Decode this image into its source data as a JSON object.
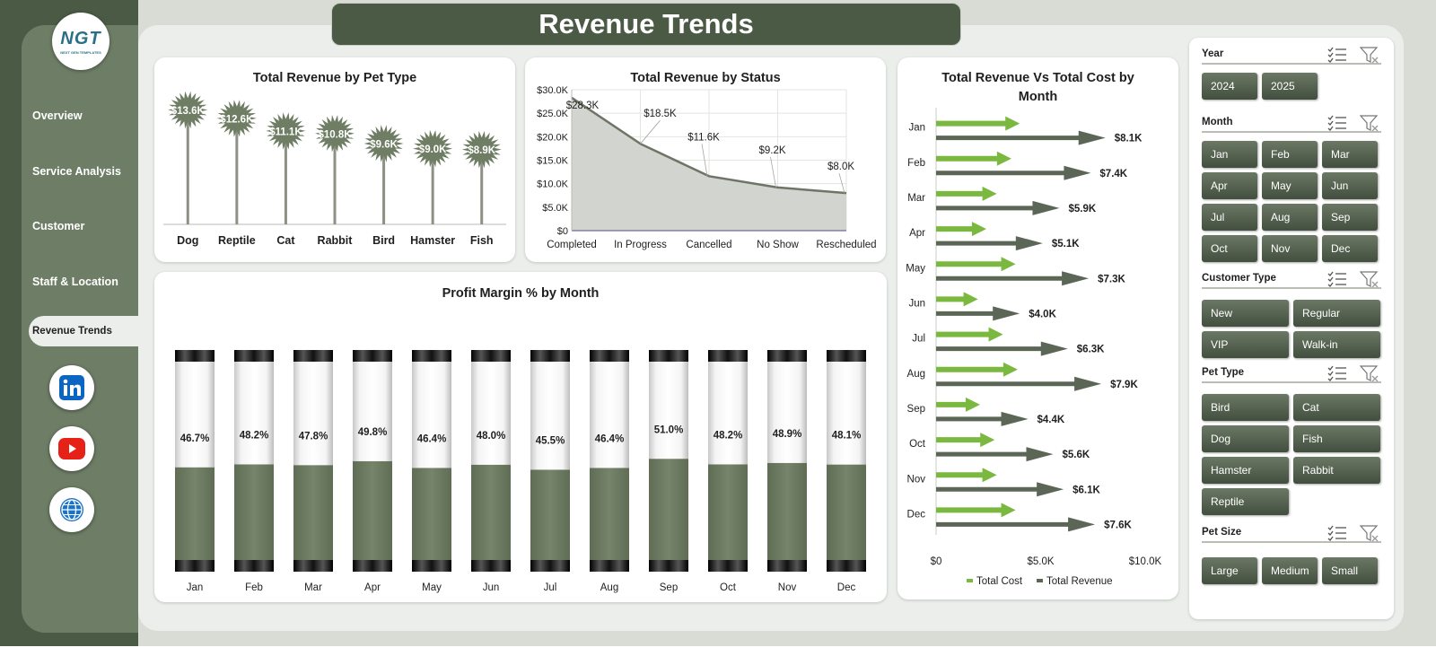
{
  "title": "Revenue Trends",
  "logo": {
    "text": "NGT",
    "sub": "NEXT GEN TEMPLATES"
  },
  "nav": [
    {
      "label": "Overview"
    },
    {
      "label": "Service Analysis"
    },
    {
      "label": "Customer"
    },
    {
      "label": "Staff & Location"
    },
    {
      "label": "Revenue Trends",
      "active": true
    }
  ],
  "social": [
    {
      "icon": "linkedin-icon",
      "color": "#0a66c2"
    },
    {
      "icon": "youtube-icon",
      "color": "#e62117"
    },
    {
      "icon": "globe-icon",
      "color": "#1a73c8"
    }
  ],
  "colors": {
    "dark_green": "#4b5a45",
    "mid_green": "#6e7e66",
    "bar_green": "#6e7d63",
    "bright_green": "#7ab83f"
  },
  "chart_data": [
    {
      "id": "pet",
      "type": "bar",
      "title": "Total Revenue  by Pet Type",
      "categories": [
        "Dog",
        "Reptile",
        "Cat",
        "Rabbit",
        "Bird",
        "Hamster",
        "Fish"
      ],
      "values": [
        13.6,
        12.6,
        11.1,
        10.8,
        9.6,
        9.0,
        8.9
      ],
      "labels": [
        "$13.6K",
        "$12.6K",
        "$11.1K",
        "$10.8K",
        "$9.6K",
        "$9.0K",
        "$8.9K"
      ],
      "ylim": [
        0,
        16
      ]
    },
    {
      "id": "status",
      "type": "area",
      "title": "Total Revenue  by Status",
      "categories": [
        "Completed",
        "In Progress",
        "Cancelled",
        "No Show",
        "Rescheduled"
      ],
      "values": [
        28.3,
        18.5,
        11.6,
        9.2,
        8.0
      ],
      "labels": [
        "$28.3K",
        "$18.5K",
        "$11.6K",
        "$9.2K",
        "$8.0K"
      ],
      "yticks": [
        "$0",
        "$5.0K",
        "$10.0K",
        "$15.0K",
        "$20.0K",
        "$25.0K",
        "$30.0K"
      ],
      "ylim": [
        0,
        30
      ]
    },
    {
      "id": "revcost",
      "type": "bar",
      "title": "Total Revenue Vs Total Cost  by Month",
      "categories": [
        "Jan",
        "Feb",
        "Mar",
        "Apr",
        "May",
        "Jun",
        "Jul",
        "Aug",
        "Sep",
        "Oct",
        "Nov",
        "Dec"
      ],
      "series": [
        {
          "name": "Total Cost",
          "values": [
            4.0,
            3.6,
            2.9,
            2.4,
            3.8,
            2.0,
            3.2,
            3.9,
            2.1,
            2.8,
            2.9,
            3.8
          ]
        },
        {
          "name": "Total Revenue",
          "values": [
            8.1,
            7.4,
            5.9,
            5.1,
            7.3,
            4.0,
            6.3,
            7.9,
            4.4,
            5.6,
            6.1,
            7.6
          ],
          "labels": [
            "$8.1K",
            "$7.4K",
            "$5.9K",
            "$5.1K",
            "$7.3K",
            "$4.0K",
            "$6.3K",
            "$7.9K",
            "$4.4K",
            "$5.6K",
            "$6.1K",
            "$7.6K"
          ]
        }
      ],
      "xticks": [
        "$0",
        "$5.0K",
        "$10.0K"
      ],
      "xlim": [
        0,
        10
      ]
    },
    {
      "id": "margin",
      "type": "bar",
      "title": "Profit Margin % by Month",
      "categories": [
        "Jan",
        "Feb",
        "Mar",
        "Apr",
        "May",
        "Jun",
        "Jul",
        "Aug",
        "Sep",
        "Oct",
        "Nov",
        "Dec"
      ],
      "values": [
        46.7,
        48.2,
        47.8,
        49.8,
        46.4,
        48.0,
        45.5,
        46.4,
        51.0,
        48.2,
        48.9,
        48.1
      ],
      "labels": [
        "46.7%",
        "48.2%",
        "47.8%",
        "49.8%",
        "46.4%",
        "48.0%",
        "45.5%",
        "46.4%",
        "51.0%",
        "48.2%",
        "48.9%",
        "48.1%"
      ],
      "ylim": [
        0,
        100
      ]
    }
  ],
  "slicers": [
    {
      "title": "Year",
      "items": [
        "2024",
        "2025"
      ]
    },
    {
      "title": "Month",
      "items": [
        "Jan",
        "Feb",
        "Mar",
        "Apr",
        "May",
        "Jun",
        "Jul",
        "Aug",
        "Sep",
        "Oct",
        "Nov",
        "Dec"
      ]
    },
    {
      "title": "Customer Type",
      "items": [
        "New",
        "Regular",
        "VIP",
        "Walk-in"
      ]
    },
    {
      "title": "Pet Type",
      "items": [
        "Bird",
        "Cat",
        "Dog",
        "Fish",
        "Hamster",
        "Rabbit",
        "Reptile"
      ]
    },
    {
      "title": "Pet Size",
      "items": [
        "Large",
        "Medium",
        "Small"
      ]
    }
  ]
}
